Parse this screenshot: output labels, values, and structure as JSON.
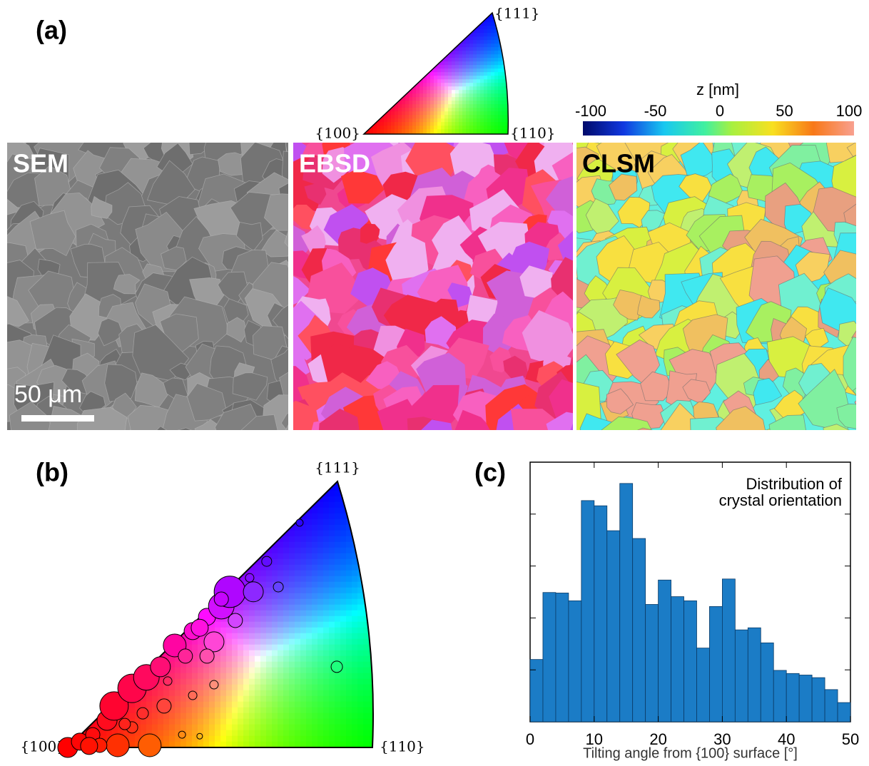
{
  "panel_a": {
    "label": "(a)",
    "ipf_key": {
      "corners": [
        "{100}",
        "{110}",
        "{111}"
      ]
    },
    "colorbar": {
      "title": "z  [nm]",
      "lim": [
        -100,
        100
      ],
      "ticks": [
        -100,
        -50,
        0,
        50,
        100
      ]
    },
    "images": [
      {
        "label": "SEM"
      },
      {
        "label": "EBSD"
      },
      {
        "label": "CLSM"
      }
    ],
    "scale_bar": "50 μm"
  },
  "chart_data": [
    {
      "type": "scatter",
      "label": "(b)",
      "corner_labels": [
        "{100}",
        "{110}",
        "{111}"
      ],
      "xlim": [
        0,
        1
      ],
      "ylim": [
        0,
        1
      ],
      "x": [
        0,
        0.04,
        0.164,
        0.269,
        0.082,
        0.129,
        0.152,
        0.211,
        0.258,
        0.304,
        0.351,
        0.41,
        0.457,
        0.504,
        0.532,
        0.609,
        0.691,
        0.653,
        0.761,
        0.883,
        0.433,
        0.48,
        0.386,
        0.316,
        0.375,
        0.433,
        0.328,
        0.41,
        0.211,
        0.105,
        0.07,
        0.504,
        0.55,
        0.457,
        0.48,
        0.246,
        0.187,
        0.597
      ],
      "values": [
        0,
        0.019,
        0.007,
        0.007,
        0.042,
        0.089,
        0.136,
        0.194,
        0.23,
        0.265,
        0.335,
        0.382,
        0.429,
        0.464,
        0.511,
        0.511,
        0.527,
        0.611,
        0.738,
        0.265,
        0.393,
        0.347,
        0.3,
        0.136,
        0.042,
        0.037,
        0.218,
        0.171,
        0.066,
        0.007,
        0.005,
        0.487,
        0.417,
        0.3,
        0.206,
        0.112,
        0.077,
        0.557
      ],
      "sizes": [
        14,
        12,
        16,
        16,
        10,
        14,
        20,
        20,
        18,
        14,
        16,
        12,
        12,
        18,
        22,
        14,
        7,
        7,
        5,
        8,
        12,
        14,
        10,
        10,
        5,
        4,
        6,
        6,
        8,
        10,
        12,
        10,
        10,
        10,
        6,
        8,
        8,
        6
      ]
    },
    {
      "type": "histogram",
      "label": "(c)",
      "annotation": [
        "Distribution of",
        "crystal orientation"
      ],
      "xlabel": "Tilting angle from {100} surface  [°]",
      "color": "#1b7cc6",
      "bins": [
        0,
        2,
        4,
        6,
        8,
        10,
        12,
        14,
        16,
        18,
        20,
        22,
        24,
        26,
        28,
        30,
        32,
        34,
        36,
        38,
        40,
        42,
        44,
        46,
        48,
        50
      ],
      "values": [
        1.2,
        2.49,
        2.48,
        2.33,
        4.26,
        4.16,
        3.68,
        4.59,
        3.53,
        2.26,
        2.73,
        2.41,
        2.33,
        1.42,
        2.22,
        2.75,
        1.77,
        1.81,
        1.52,
        0.99,
        0.93,
        0.9,
        0.85,
        0.62,
        0.37
      ],
      "xlim": [
        0,
        50
      ],
      "xticks": [
        0,
        10,
        20,
        30,
        40,
        50
      ],
      "ylim": [
        0,
        5
      ],
      "yticks": [
        1,
        2,
        3,
        4
      ]
    }
  ]
}
